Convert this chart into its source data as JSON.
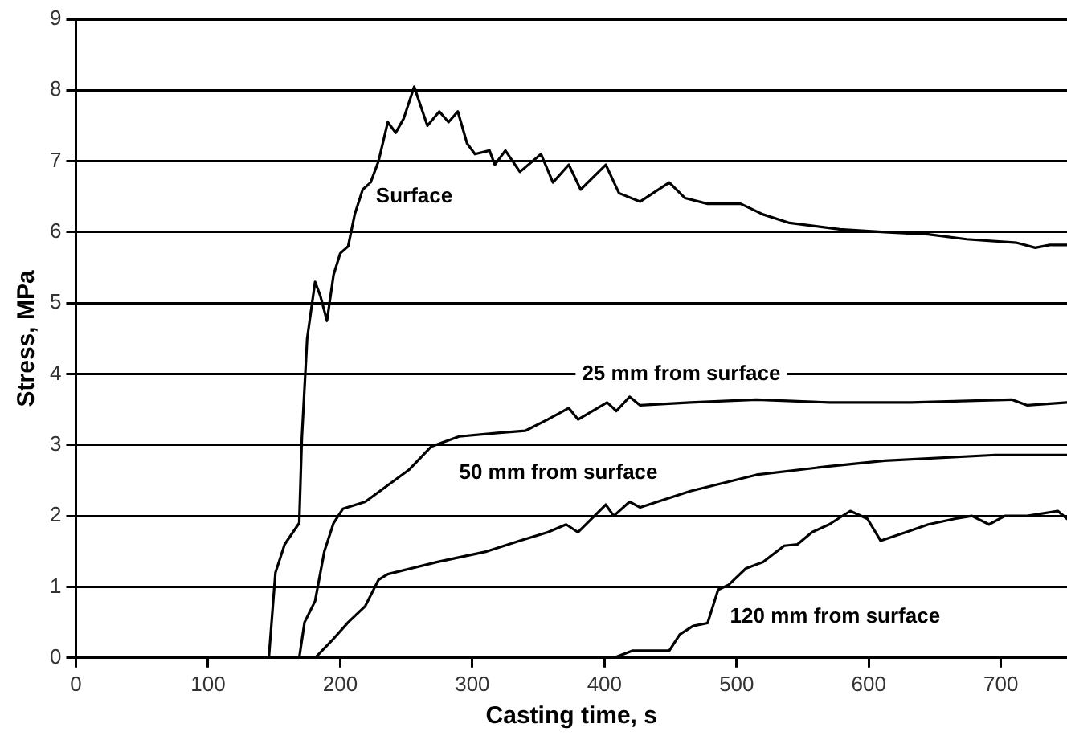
{
  "chart_data": {
    "type": "line",
    "xlabel": "Casting time, s",
    "ylabel": "Stress, MPa",
    "xlim": [
      0,
      750
    ],
    "xticks": [
      0,
      100,
      200,
      300,
      400,
      500,
      600,
      700
    ],
    "ylim": [
      0,
      9
    ],
    "yticks": [
      0,
      1,
      2,
      3,
      4,
      5,
      6,
      7,
      8,
      9
    ],
    "grid": "y",
    "legend": false,
    "marker": "none",
    "line_style": "solid",
    "series": [
      {
        "name": "Surface",
        "color": "#000000",
        "x": [
          146,
          151,
          158,
          169,
          171,
          175,
          181,
          185,
          190,
          195,
          200,
          206,
          211,
          217,
          223,
          229,
          236,
          242,
          248,
          256,
          266,
          275,
          282,
          289,
          296,
          302,
          313,
          317,
          325,
          336,
          352,
          361,
          373,
          382,
          401,
          411,
          427,
          449,
          461,
          478,
          503,
          520,
          540,
          578,
          612,
          645,
          674,
          712,
          726,
          737,
          750
        ],
        "values": [
          0,
          1.2,
          1.6,
          1.9,
          3.1,
          4.5,
          5.3,
          5.1,
          4.75,
          5.4,
          5.7,
          5.8,
          6.25,
          6.6,
          6.7,
          7.0,
          7.55,
          7.4,
          7.6,
          8.05,
          7.5,
          7.7,
          7.55,
          7.7,
          7.25,
          7.1,
          7.15,
          6.95,
          7.15,
          6.85,
          7.1,
          6.7,
          6.95,
          6.6,
          6.95,
          6.55,
          6.43,
          6.7,
          6.48,
          6.4,
          6.4,
          6.25,
          6.13,
          6.04,
          6.0,
          5.97,
          5.9,
          5.85,
          5.78,
          5.82,
          5.82
        ]
      },
      {
        "name": "25 mm from surface",
        "color": "#000000",
        "x": [
          169,
          173,
          181,
          188,
          195,
          202,
          219,
          252,
          269,
          290,
          319,
          340,
          357,
          373,
          380,
          402,
          409,
          419,
          427,
          465,
          515,
          570,
          632,
          708,
          720,
          750
        ],
        "values": [
          0,
          0.5,
          0.8,
          1.5,
          1.9,
          2.1,
          2.2,
          2.65,
          2.98,
          3.12,
          3.17,
          3.2,
          3.36,
          3.52,
          3.36,
          3.6,
          3.48,
          3.68,
          3.56,
          3.6,
          3.64,
          3.6,
          3.6,
          3.64,
          3.56,
          3.6
        ]
      },
      {
        "name": "50 mm from surface",
        "color": "#000000",
        "x": [
          181,
          194,
          206,
          219,
          229,
          236,
          273,
          311,
          336,
          357,
          371,
          380,
          401,
          407,
          419,
          427,
          465,
          515,
          570,
          612,
          696,
          750
        ],
        "values": [
          0,
          0.25,
          0.5,
          0.73,
          1.1,
          1.18,
          1.35,
          1.5,
          1.65,
          1.77,
          1.88,
          1.77,
          2.16,
          2.0,
          2.2,
          2.12,
          2.35,
          2.58,
          2.7,
          2.78,
          2.86,
          2.86
        ]
      },
      {
        "name": "120 mm from surface",
        "color": "#000000",
        "x": [
          407,
          421,
          449,
          457,
          467,
          478,
          486,
          494,
          507,
          520,
          536,
          546,
          557,
          570,
          586,
          599,
          609,
          628,
          645,
          665,
          678,
          691,
          703,
          720,
          743,
          750
        ],
        "values": [
          0,
          0.1,
          0.1,
          0.33,
          0.45,
          0.49,
          0.96,
          1.03,
          1.26,
          1.35,
          1.58,
          1.6,
          1.77,
          1.88,
          2.07,
          1.96,
          1.65,
          1.77,
          1.88,
          1.96,
          2.0,
          1.88,
          2.0,
          2.0,
          2.07,
          1.96
        ]
      }
    ]
  }
}
